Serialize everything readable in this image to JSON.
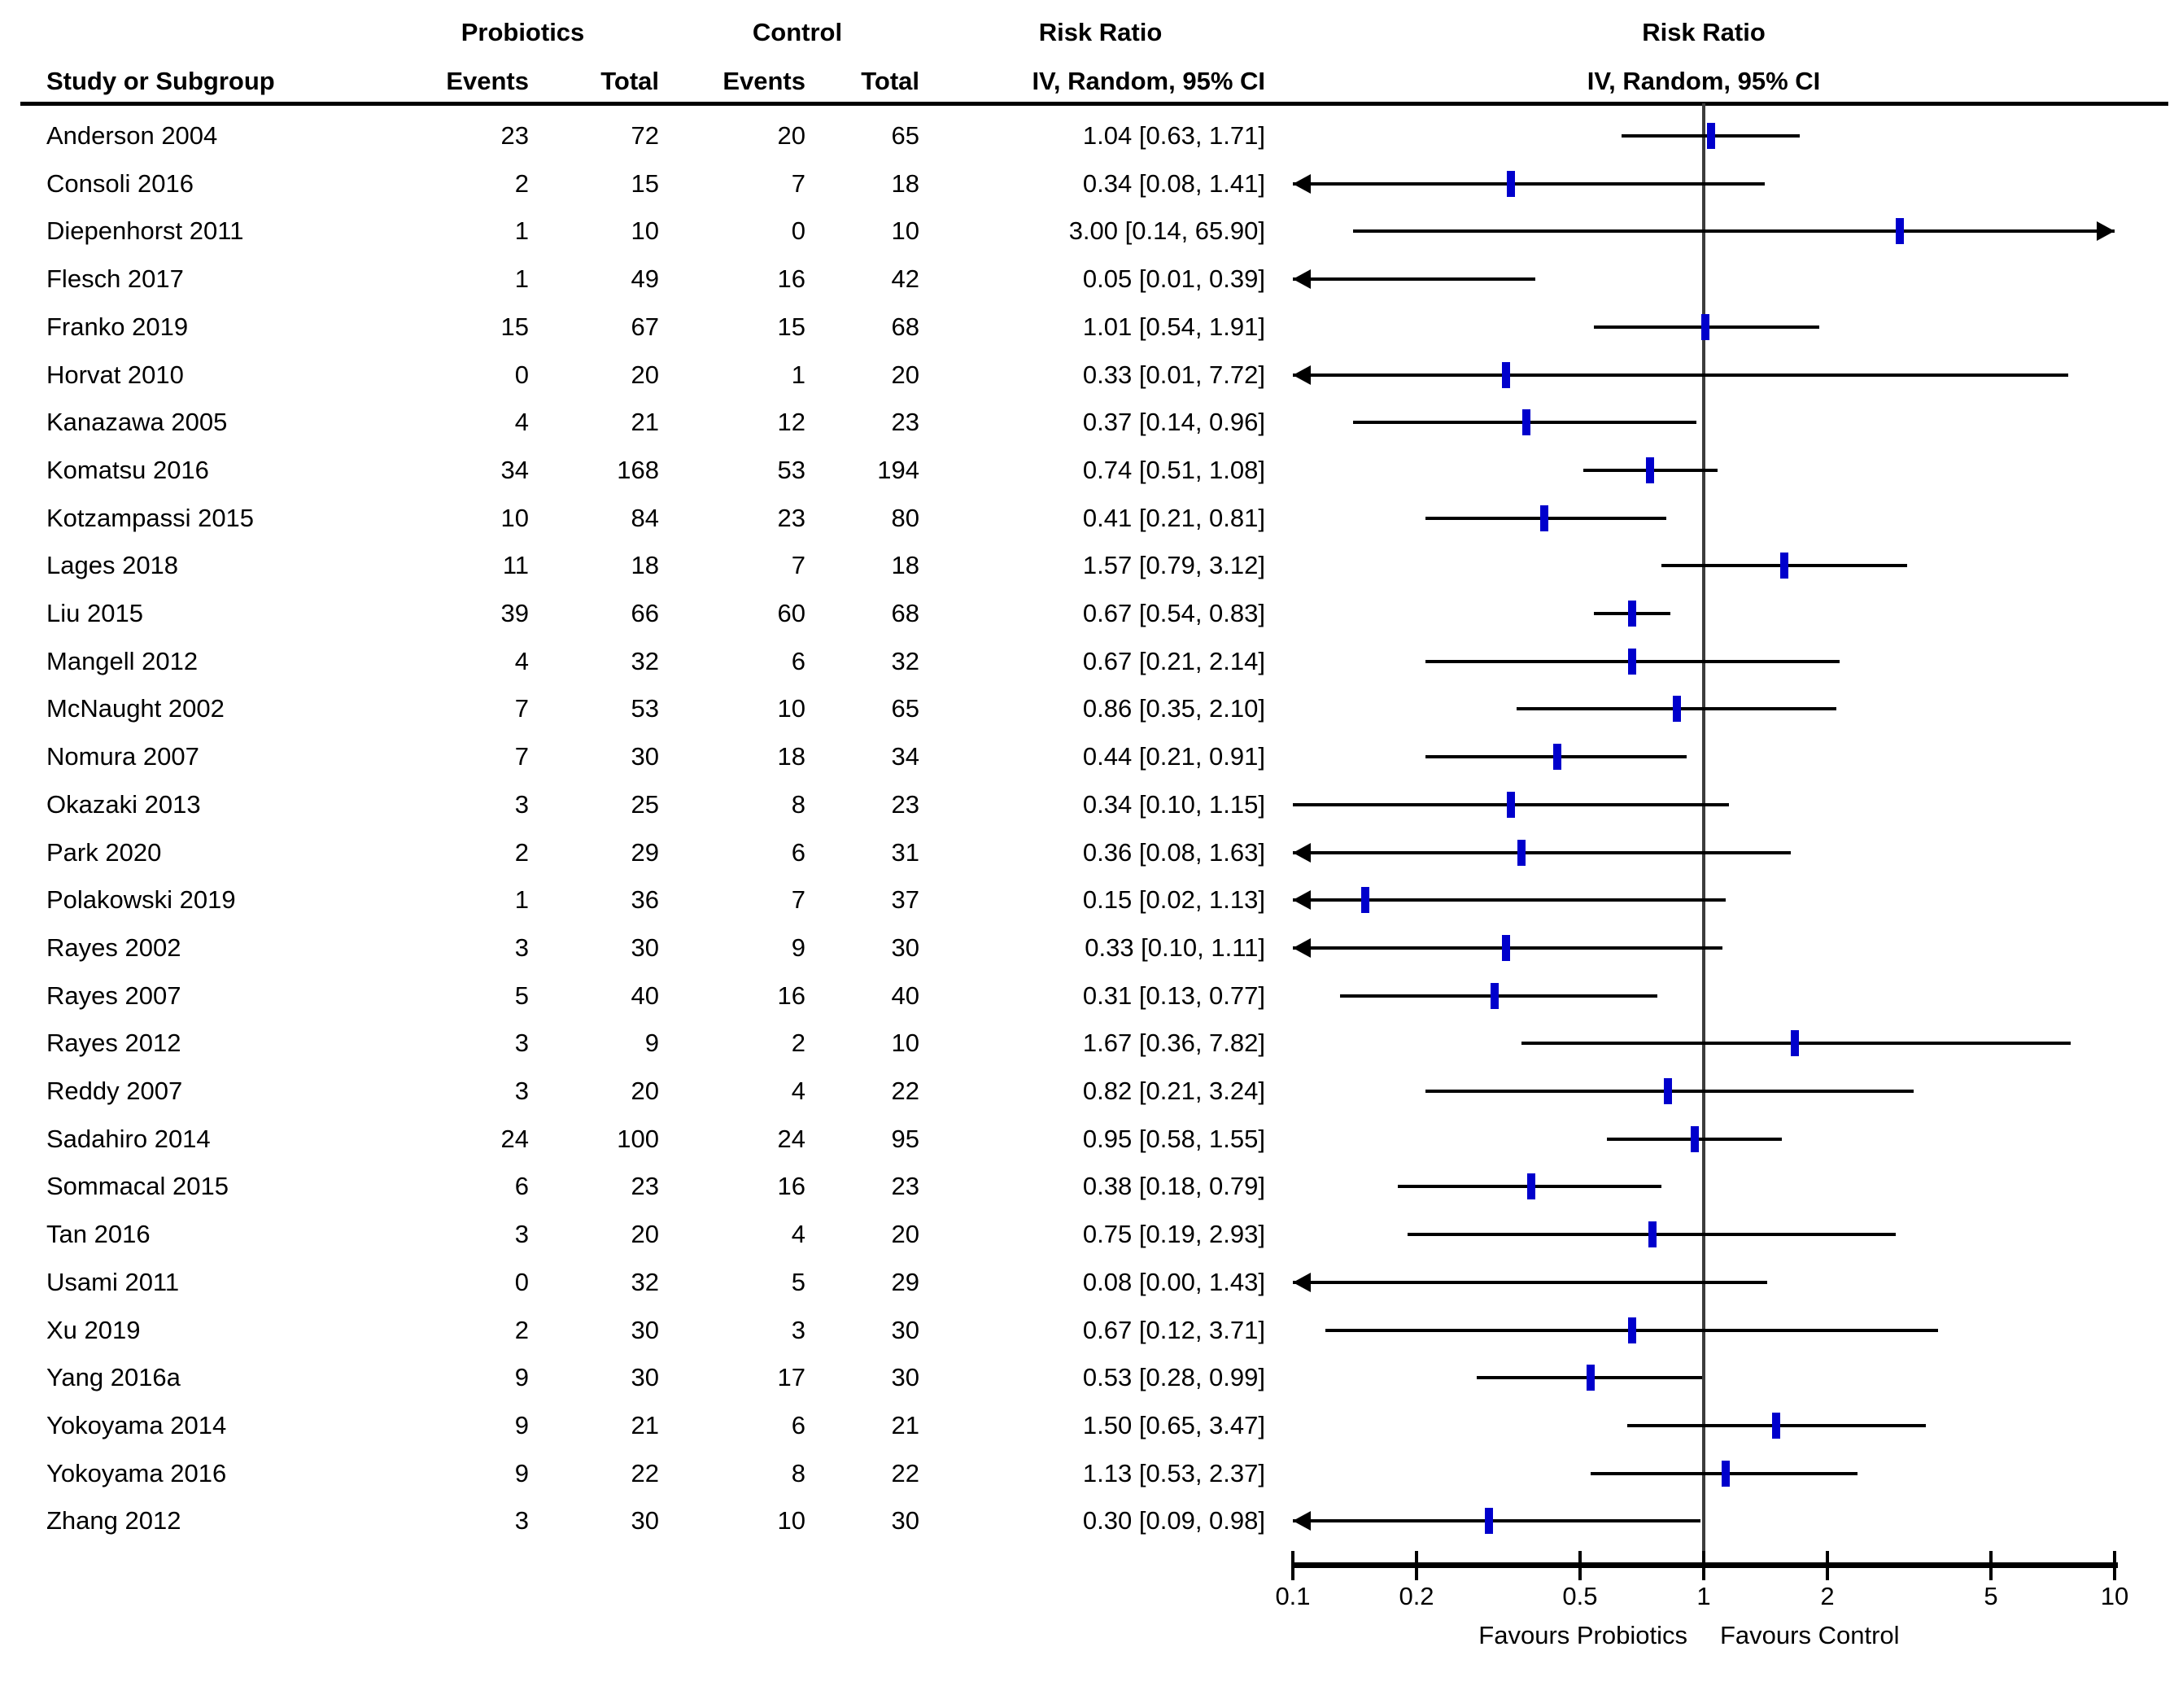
{
  "header": {
    "study_col": "Study or Subgroup",
    "group1": "Probiotics",
    "group2": "Control",
    "events": "Events",
    "total": "Total",
    "risk_ratio": "Risk Ratio",
    "method": "IV, Random, 95% CI"
  },
  "axis": {
    "scale": "log10",
    "min": 0.1,
    "max": 10,
    "ticks": [
      0.1,
      0.2,
      0.5,
      1,
      2,
      5,
      10
    ],
    "tick_labels": [
      "0.1",
      "0.2",
      "0.5",
      "1",
      "2",
      "5",
      "10"
    ],
    "favours_left": "Favours Probiotics",
    "favours_right": "Favours Control",
    "reference_value": 1
  },
  "colors": {
    "marker_blue": "#0000cc",
    "ci_line_black": "#000000",
    "ref_line_gray": "#3c3c3c",
    "text_black": "#000000"
  },
  "chart_data": {
    "type": "forest_plot",
    "effect_measure": "Risk Ratio",
    "model": "IV, Random, 95% CI",
    "x_scale": "log10",
    "xlim": [
      0.1,
      10
    ],
    "grid": false,
    "studies": [
      {
        "name": "Anderson 2004",
        "probiotics_events": 23,
        "probiotics_total": 72,
        "control_events": 20,
        "control_total": 65,
        "rr": 1.04,
        "ci_low": 0.63,
        "ci_high": 1.71,
        "label": "1.04 [0.63, 1.71]",
        "arrow_left": false,
        "arrow_right": false
      },
      {
        "name": "Consoli 2016",
        "probiotics_events": 2,
        "probiotics_total": 15,
        "control_events": 7,
        "control_total": 18,
        "rr": 0.34,
        "ci_low": 0.08,
        "ci_high": 1.41,
        "label": "0.34 [0.08, 1.41]",
        "arrow_left": true,
        "arrow_right": false
      },
      {
        "name": "Diepenhorst 2011",
        "probiotics_events": 1,
        "probiotics_total": 10,
        "control_events": 0,
        "control_total": 10,
        "rr": 3.0,
        "ci_low": 0.14,
        "ci_high": 65.9,
        "label": "3.00 [0.14, 65.90]",
        "arrow_left": false,
        "arrow_right": true
      },
      {
        "name": "Flesch 2017",
        "probiotics_events": 1,
        "probiotics_total": 49,
        "control_events": 16,
        "control_total": 42,
        "rr": 0.05,
        "ci_low": 0.01,
        "ci_high": 0.39,
        "label": "0.05 [0.01, 0.39]",
        "arrow_left": true,
        "arrow_right": false
      },
      {
        "name": "Franko 2019",
        "probiotics_events": 15,
        "probiotics_total": 67,
        "control_events": 15,
        "control_total": 68,
        "rr": 1.01,
        "ci_low": 0.54,
        "ci_high": 1.91,
        "label": "1.01 [0.54, 1.91]",
        "arrow_left": false,
        "arrow_right": false
      },
      {
        "name": "Horvat 2010",
        "probiotics_events": 0,
        "probiotics_total": 20,
        "control_events": 1,
        "control_total": 20,
        "rr": 0.33,
        "ci_low": 0.01,
        "ci_high": 7.72,
        "label": "0.33 [0.01, 7.72]",
        "arrow_left": true,
        "arrow_right": false
      },
      {
        "name": "Kanazawa 2005",
        "probiotics_events": 4,
        "probiotics_total": 21,
        "control_events": 12,
        "control_total": 23,
        "rr": 0.37,
        "ci_low": 0.14,
        "ci_high": 0.96,
        "label": "0.37 [0.14, 0.96]",
        "arrow_left": false,
        "arrow_right": false
      },
      {
        "name": "Komatsu 2016",
        "probiotics_events": 34,
        "probiotics_total": 168,
        "control_events": 53,
        "control_total": 194,
        "rr": 0.74,
        "ci_low": 0.51,
        "ci_high": 1.08,
        "label": "0.74 [0.51, 1.08]",
        "arrow_left": false,
        "arrow_right": false
      },
      {
        "name": "Kotzampassi 2015",
        "probiotics_events": 10,
        "probiotics_total": 84,
        "control_events": 23,
        "control_total": 80,
        "rr": 0.41,
        "ci_low": 0.21,
        "ci_high": 0.81,
        "label": "0.41 [0.21, 0.81]",
        "arrow_left": false,
        "arrow_right": false
      },
      {
        "name": "Lages 2018",
        "probiotics_events": 11,
        "probiotics_total": 18,
        "control_events": 7,
        "control_total": 18,
        "rr": 1.57,
        "ci_low": 0.79,
        "ci_high": 3.12,
        "label": "1.57 [0.79, 3.12]",
        "arrow_left": false,
        "arrow_right": false
      },
      {
        "name": "Liu 2015",
        "probiotics_events": 39,
        "probiotics_total": 66,
        "control_events": 60,
        "control_total": 68,
        "rr": 0.67,
        "ci_low": 0.54,
        "ci_high": 0.83,
        "label": "0.67 [0.54, 0.83]",
        "arrow_left": false,
        "arrow_right": false
      },
      {
        "name": "Mangell 2012",
        "probiotics_events": 4,
        "probiotics_total": 32,
        "control_events": 6,
        "control_total": 32,
        "rr": 0.67,
        "ci_low": 0.21,
        "ci_high": 2.14,
        "label": "0.67 [0.21, 2.14]",
        "arrow_left": false,
        "arrow_right": false
      },
      {
        "name": "McNaught 2002",
        "probiotics_events": 7,
        "probiotics_total": 53,
        "control_events": 10,
        "control_total": 65,
        "rr": 0.86,
        "ci_low": 0.35,
        "ci_high": 2.1,
        "label": "0.86 [0.35, 2.10]",
        "arrow_left": false,
        "arrow_right": false
      },
      {
        "name": "Nomura 2007",
        "probiotics_events": 7,
        "probiotics_total": 30,
        "control_events": 18,
        "control_total": 34,
        "rr": 0.44,
        "ci_low": 0.21,
        "ci_high": 0.91,
        "label": "0.44 [0.21, 0.91]",
        "arrow_left": false,
        "arrow_right": false
      },
      {
        "name": "Okazaki 2013",
        "probiotics_events": 3,
        "probiotics_total": 25,
        "control_events": 8,
        "control_total": 23,
        "rr": 0.34,
        "ci_low": 0.1,
        "ci_high": 1.15,
        "label": "0.34 [0.10, 1.15]",
        "arrow_left": false,
        "arrow_right": false
      },
      {
        "name": "Park 2020",
        "probiotics_events": 2,
        "probiotics_total": 29,
        "control_events": 6,
        "control_total": 31,
        "rr": 0.36,
        "ci_low": 0.08,
        "ci_high": 1.63,
        "label": "0.36 [0.08, 1.63]",
        "arrow_left": true,
        "arrow_right": false
      },
      {
        "name": "Polakowski 2019",
        "probiotics_events": 1,
        "probiotics_total": 36,
        "control_events": 7,
        "control_total": 37,
        "rr": 0.15,
        "ci_low": 0.02,
        "ci_high": 1.13,
        "label": "0.15 [0.02, 1.13]",
        "arrow_left": true,
        "arrow_right": false
      },
      {
        "name": "Rayes 2002",
        "probiotics_events": 3,
        "probiotics_total": 30,
        "control_events": 9,
        "control_total": 30,
        "rr": 0.33,
        "ci_low": 0.1,
        "ci_high": 1.11,
        "label": "0.33 [0.10, 1.11]",
        "arrow_left": true,
        "arrow_right": false
      },
      {
        "name": "Rayes 2007",
        "probiotics_events": 5,
        "probiotics_total": 40,
        "control_events": 16,
        "control_total": 40,
        "rr": 0.31,
        "ci_low": 0.13,
        "ci_high": 0.77,
        "label": "0.31 [0.13, 0.77]",
        "arrow_left": false,
        "arrow_right": false
      },
      {
        "name": "Rayes 2012",
        "probiotics_events": 3,
        "probiotics_total": 9,
        "control_events": 2,
        "control_total": 10,
        "rr": 1.67,
        "ci_low": 0.36,
        "ci_high": 7.82,
        "label": "1.67 [0.36, 7.82]",
        "arrow_left": false,
        "arrow_right": false
      },
      {
        "name": "Reddy 2007",
        "probiotics_events": 3,
        "probiotics_total": 20,
        "control_events": 4,
        "control_total": 22,
        "rr": 0.82,
        "ci_low": 0.21,
        "ci_high": 3.24,
        "label": "0.82 [0.21, 3.24]",
        "arrow_left": false,
        "arrow_right": false
      },
      {
        "name": "Sadahiro 2014",
        "probiotics_events": 24,
        "probiotics_total": 100,
        "control_events": 24,
        "control_total": 95,
        "rr": 0.95,
        "ci_low": 0.58,
        "ci_high": 1.55,
        "label": "0.95 [0.58, 1.55]",
        "arrow_left": false,
        "arrow_right": false
      },
      {
        "name": "Sommacal 2015",
        "probiotics_events": 6,
        "probiotics_total": 23,
        "control_events": 16,
        "control_total": 23,
        "rr": 0.38,
        "ci_low": 0.18,
        "ci_high": 0.79,
        "label": "0.38 [0.18, 0.79]",
        "arrow_left": false,
        "arrow_right": false
      },
      {
        "name": "Tan 2016",
        "probiotics_events": 3,
        "probiotics_total": 20,
        "control_events": 4,
        "control_total": 20,
        "rr": 0.75,
        "ci_low": 0.19,
        "ci_high": 2.93,
        "label": "0.75 [0.19, 2.93]",
        "arrow_left": false,
        "arrow_right": false
      },
      {
        "name": "Usami 2011",
        "probiotics_events": 0,
        "probiotics_total": 32,
        "control_events": 5,
        "control_total": 29,
        "rr": 0.08,
        "ci_low": 0.0,
        "ci_high": 1.43,
        "label": "0.08 [0.00, 1.43]",
        "arrow_left": true,
        "arrow_right": false
      },
      {
        "name": "Xu 2019",
        "probiotics_events": 2,
        "probiotics_total": 30,
        "control_events": 3,
        "control_total": 30,
        "rr": 0.67,
        "ci_low": 0.12,
        "ci_high": 3.71,
        "label": "0.67 [0.12, 3.71]",
        "arrow_left": false,
        "arrow_right": false
      },
      {
        "name": "Yang 2016a",
        "probiotics_events": 9,
        "probiotics_total": 30,
        "control_events": 17,
        "control_total": 30,
        "rr": 0.53,
        "ci_low": 0.28,
        "ci_high": 0.99,
        "label": "0.53 [0.28, 0.99]",
        "arrow_left": false,
        "arrow_right": false
      },
      {
        "name": "Yokoyama 2014",
        "probiotics_events": 9,
        "probiotics_total": 21,
        "control_events": 6,
        "control_total": 21,
        "rr": 1.5,
        "ci_low": 0.65,
        "ci_high": 3.47,
        "label": "1.50 [0.65, 3.47]",
        "arrow_left": false,
        "arrow_right": false
      },
      {
        "name": "Yokoyama 2016",
        "probiotics_events": 9,
        "probiotics_total": 22,
        "control_events": 8,
        "control_total": 22,
        "rr": 1.13,
        "ci_low": 0.53,
        "ci_high": 2.37,
        "label": "1.13 [0.53, 2.37]",
        "arrow_left": false,
        "arrow_right": false
      },
      {
        "name": "Zhang 2012",
        "probiotics_events": 3,
        "probiotics_total": 30,
        "control_events": 10,
        "control_total": 30,
        "rr": 0.3,
        "ci_low": 0.09,
        "ci_high": 0.98,
        "label": "0.30 [0.09, 0.98]",
        "arrow_left": true,
        "arrow_right": false
      }
    ]
  }
}
